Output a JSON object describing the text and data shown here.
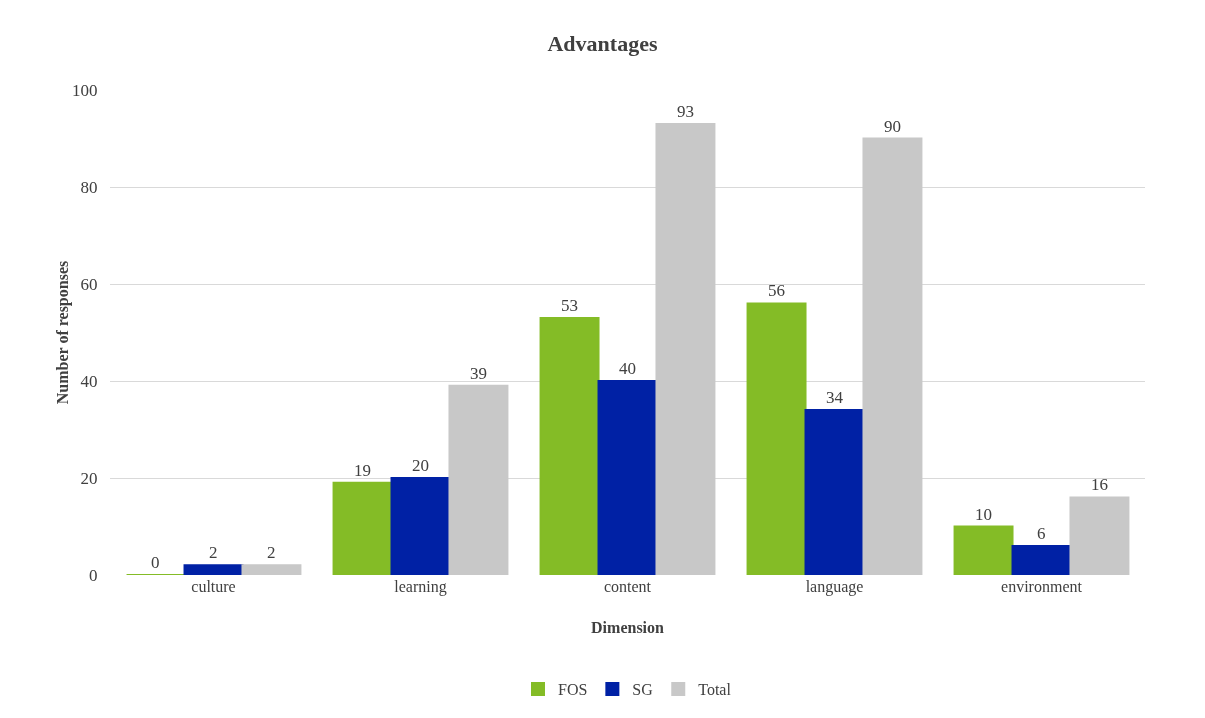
{
  "chart_data": {
    "type": "bar",
    "title": "Advantages",
    "xlabel": "Dimension",
    "ylabel": "Number of responses",
    "categories": [
      "culture",
      "learning",
      "content",
      "language",
      "environment"
    ],
    "series": [
      {
        "name": "FOS",
        "color": "#84bc26",
        "values": [
          0,
          19,
          53,
          56,
          10
        ]
      },
      {
        "name": "SG",
        "color": "#0021a5",
        "values": [
          2,
          20,
          40,
          34,
          6
        ]
      },
      {
        "name": "Total",
        "color": "#c8c8c8",
        "values": [
          2,
          39,
          93,
          90,
          16
        ]
      }
    ],
    "ylim": [
      0,
      100
    ],
    "yticks": [
      0,
      20,
      40,
      60,
      80,
      100
    ],
    "grid": "y",
    "legend": "bottom",
    "data_labels": true
  }
}
